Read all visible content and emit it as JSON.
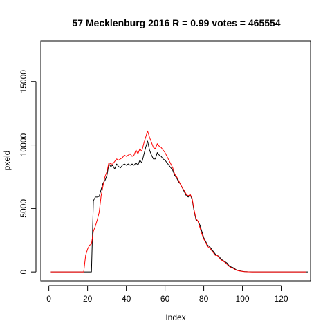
{
  "chart_data": {
    "type": "line",
    "title": "57 Mecklenburg 2016 R = 0.99 votes = 465554",
    "xlabel": "Index",
    "ylabel": "pxeld",
    "xlim": [
      1,
      130
    ],
    "ylim": [
      0,
      17500
    ],
    "x_ticks": [
      0,
      20,
      40,
      60,
      80,
      100,
      120
    ],
    "x_tick_labels": [
      "0",
      "20",
      "40",
      "60",
      "80",
      "100",
      "120"
    ],
    "y_ticks": [
      0,
      5000,
      10000,
      15000
    ],
    "y_tick_labels": [
      "0",
      "5000",
      "10000",
      "15000"
    ],
    "grid": false,
    "series": [
      {
        "color": "#000000",
        "values": [
          0,
          0,
          0,
          0,
          0,
          0,
          0,
          0,
          0,
          0,
          0,
          0,
          0,
          0,
          0,
          0,
          0,
          0,
          0,
          0,
          0,
          0,
          5600,
          5900,
          5900,
          5950,
          6500,
          7000,
          7200,
          7600,
          8500,
          8300,
          8400,
          8100,
          8500,
          8300,
          8200,
          8400,
          8500,
          8400,
          8500,
          8400,
          8500,
          8400,
          8600,
          8400,
          8800,
          8600,
          9200,
          9800,
          10300,
          9600,
          9200,
          8900,
          8900,
          9400,
          9200,
          9100,
          8900,
          8800,
          8600,
          8400,
          8200,
          8000,
          7600,
          7400,
          7100,
          6900,
          6600,
          6300,
          6000,
          5900,
          6100,
          5700,
          4800,
          4100,
          4000,
          3700,
          3200,
          2700,
          2400,
          2100,
          2000,
          1800,
          1600,
          1400,
          1300,
          1200,
          1000,
          900,
          800,
          700,
          500,
          400,
          350,
          250,
          150,
          100,
          80,
          50,
          30,
          20,
          10,
          5,
          0,
          0,
          0,
          0,
          0,
          0,
          0,
          0,
          0,
          0,
          0,
          0,
          0,
          0,
          0,
          0,
          0,
          0,
          0,
          0,
          0,
          0,
          0,
          0,
          0,
          0,
          0,
          0,
          0,
          0
        ]
      },
      {
        "color": "#ff0000",
        "values": [
          0,
          0,
          0,
          0,
          0,
          0,
          0,
          0,
          0,
          0,
          0,
          0,
          0,
          0,
          0,
          0,
          0,
          0,
          1300,
          1800,
          2100,
          2200,
          3200,
          3600,
          4100,
          4700,
          6000,
          6800,
          7500,
          7900,
          8600,
          8500,
          8500,
          8700,
          8900,
          8800,
          8900,
          9000,
          9200,
          9100,
          9200,
          9300,
          9100,
          9200,
          9600,
          9300,
          9700,
          9500,
          10100,
          10600,
          11100,
          10600,
          10200,
          9800,
          9700,
          10100,
          9900,
          9800,
          9600,
          9400,
          9100,
          8800,
          8500,
          8200,
          7700,
          7500,
          7200,
          6900,
          6600,
          6400,
          6100,
          6000,
          6100,
          5800,
          4900,
          4200,
          4000,
          3500,
          3000,
          2600,
          2300,
          2000,
          1900,
          1700,
          1500,
          1300,
          1300,
          1100,
          950,
          850,
          750,
          600,
          450,
          350,
          300,
          200,
          130,
          90,
          60,
          40,
          25,
          15,
          8,
          4,
          0,
          0,
          0,
          0,
          0,
          0,
          0,
          0,
          0,
          0,
          0,
          0,
          0,
          0,
          0,
          0,
          0,
          0,
          0,
          0,
          0,
          0,
          0,
          0,
          0,
          0,
          0,
          0,
          0
        ]
      }
    ]
  }
}
